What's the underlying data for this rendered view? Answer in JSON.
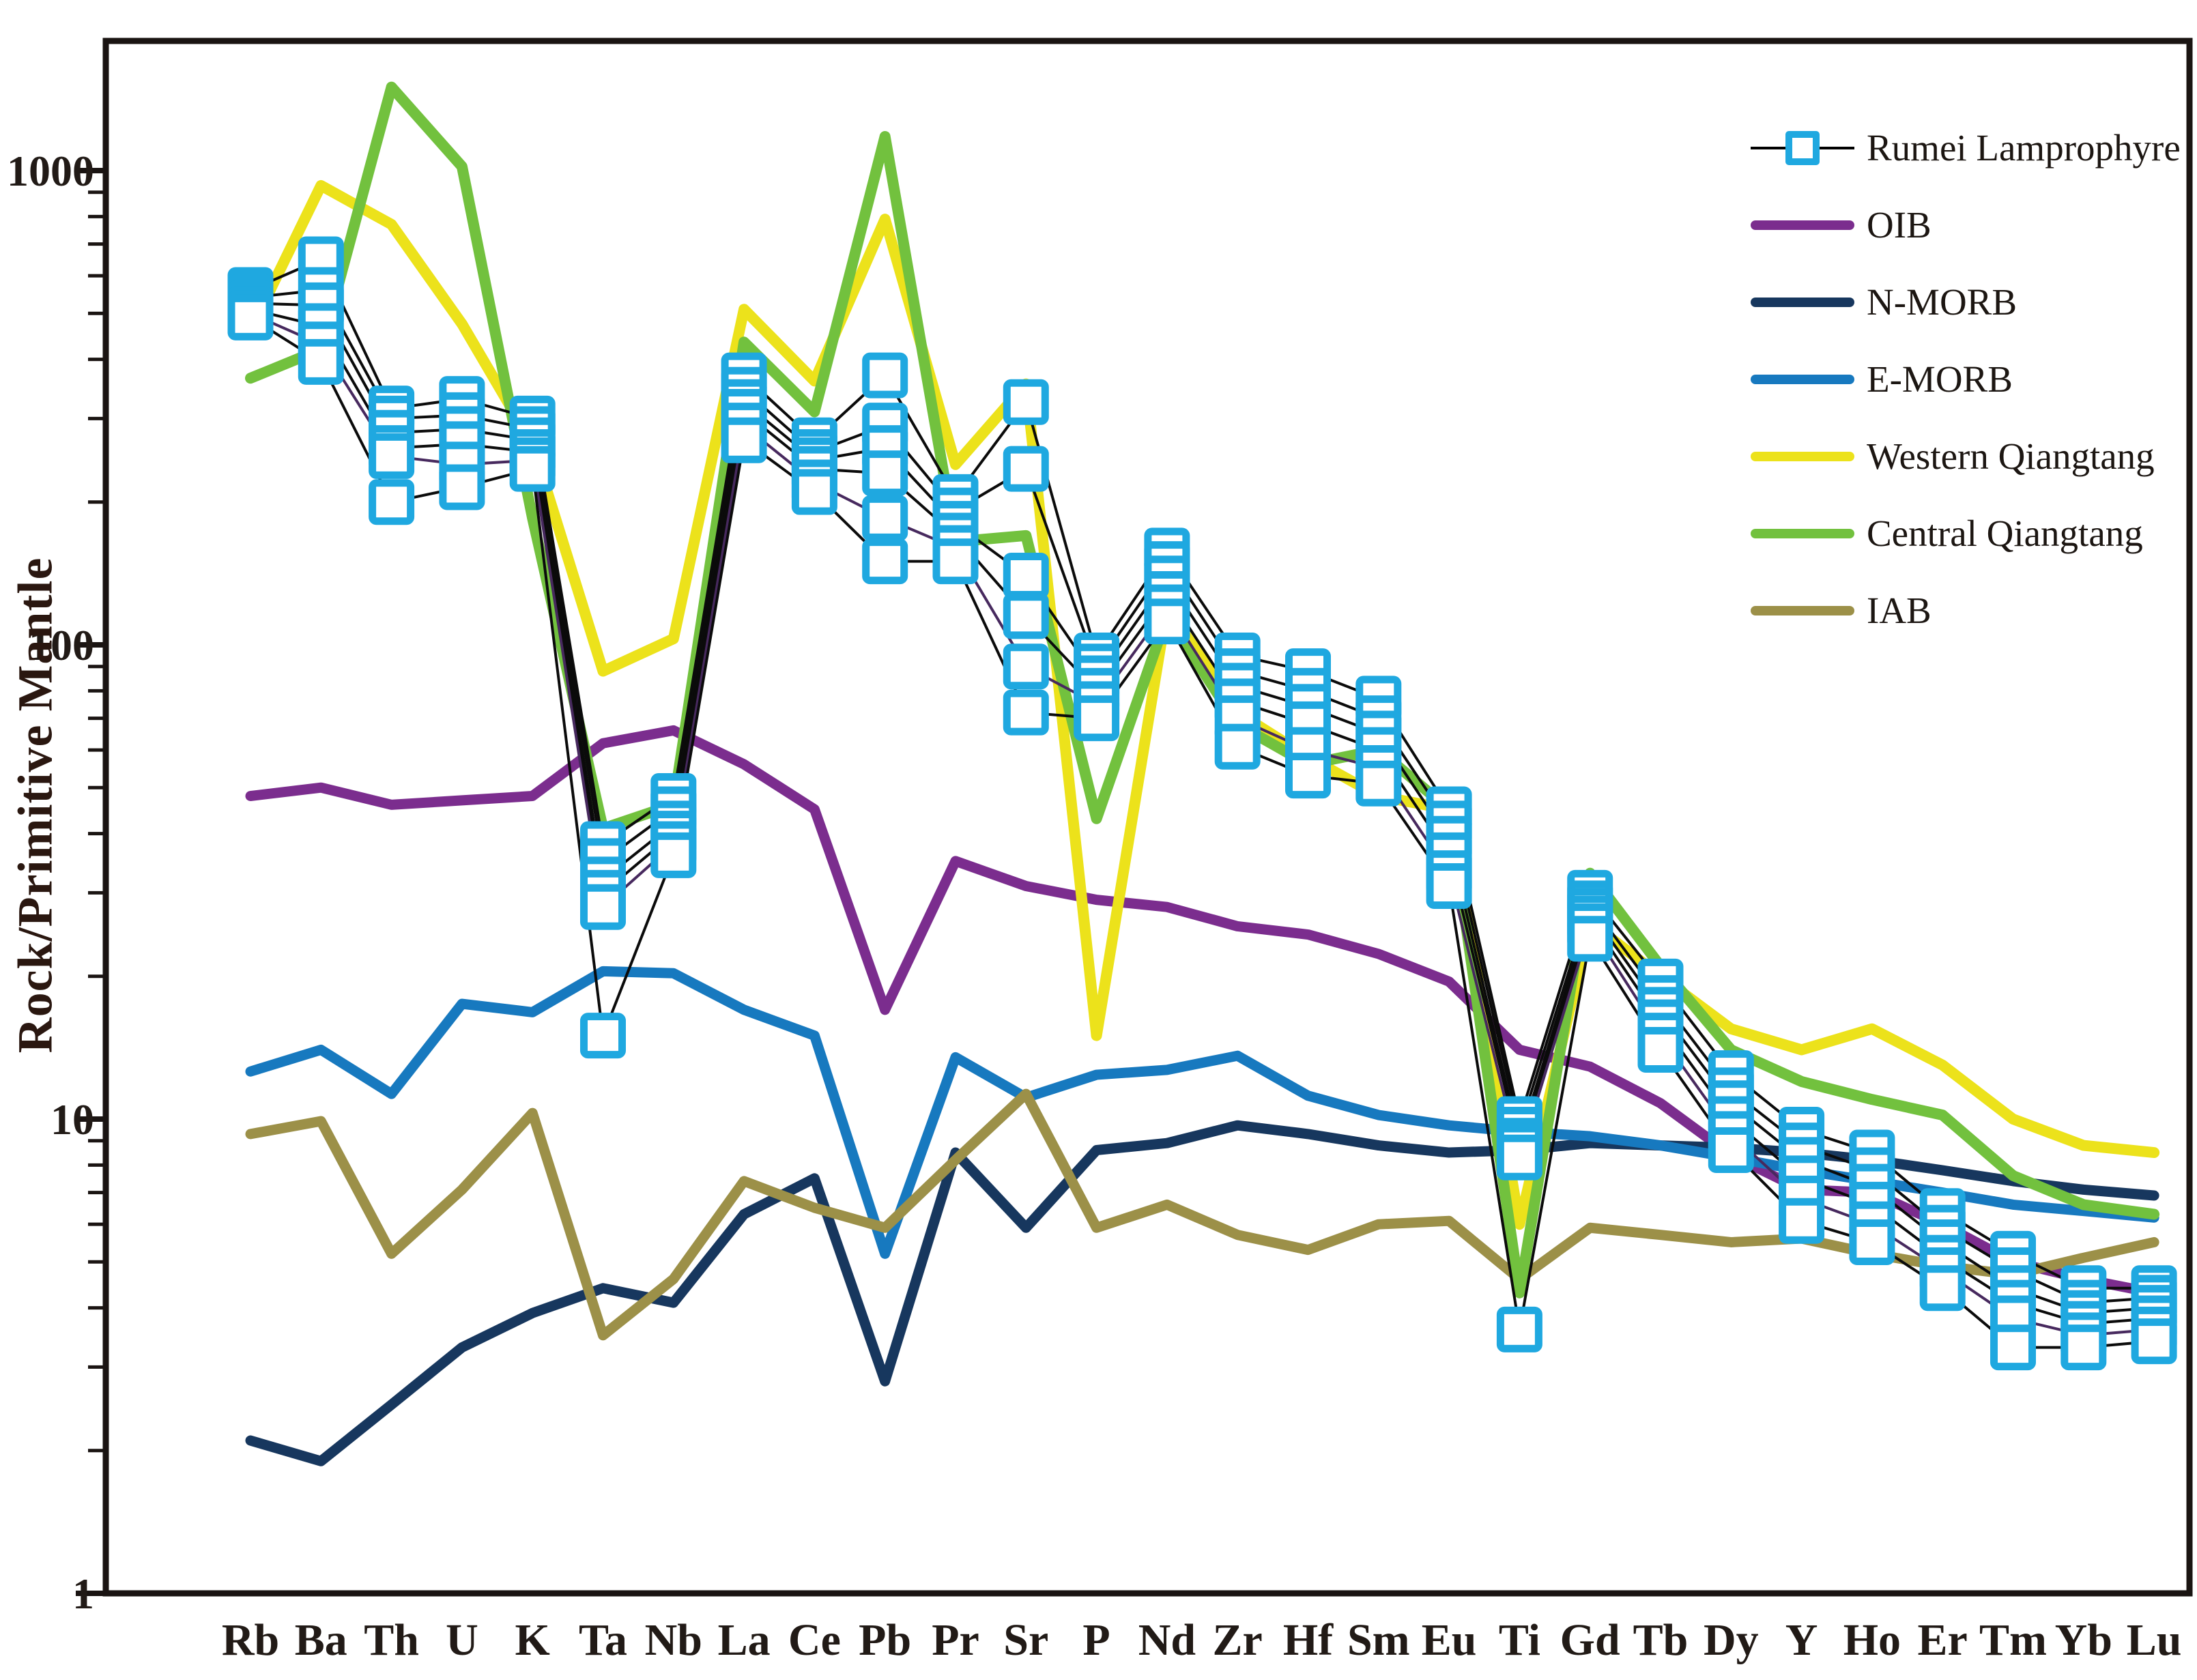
{
  "figure": {
    "ylabel": "Rock/Primitive Mantle"
  },
  "legend": {
    "position": "top-right",
    "items": [
      {
        "label": "Rumei Lamprophyre",
        "type": "sample-marker",
        "color": "#1fa8e0",
        "line_color": "#000000"
      },
      {
        "label": "OIB",
        "type": "line",
        "color": "#7b2d8e"
      },
      {
        "label": "N-MORB",
        "type": "line",
        "color": "#17375e"
      },
      {
        "label": "E-MORB",
        "type": "line",
        "color": "#1779bf"
      },
      {
        "label": "Western Qiangtang",
        "type": "line",
        "color": "#ece21b"
      },
      {
        "label": "Central Qiangtang",
        "type": "line",
        "color": "#72c13e"
      },
      {
        "label": "IAB",
        "type": "line",
        "color": "#9c9048"
      }
    ]
  },
  "chart_data": {
    "type": "line",
    "title": "",
    "xlabel": "",
    "ylabel": "Rock/Primitive Mantle",
    "x_categories": [
      "Rb",
      "Ba",
      "Th",
      "U",
      "K",
      "Ta",
      "Nb",
      "La",
      "Ce",
      "Pb",
      "Pr",
      "Sr",
      "P",
      "Nd",
      "Zr",
      "Hf",
      "Sm",
      "Eu",
      "Ti",
      "Gd",
      "Tb",
      "Dy",
      "Y",
      "Ho",
      "Er",
      "Tm",
      "Yb",
      "Lu"
    ],
    "yaxis": {
      "scale": "log",
      "ylim": [
        1,
        1875
      ],
      "ticks": [
        1,
        10,
        100,
        1000
      ],
      "tick_labels": [
        "1",
        "10",
        "100",
        "1000"
      ],
      "minor_ticks": "2-9 each decade",
      "grid": false
    },
    "samples": {
      "name": "Rumei Lamprophyre",
      "marker": "open-square",
      "marker_color": "#1fa8e0",
      "line_colors": [
        "#0b0b0b",
        "#0b0b0b",
        "#0b0b0b",
        "#0b0b0b",
        "#47295e",
        "#0b0b0b"
      ],
      "values_list": [
        [
          560,
          650,
          315,
          330,
          300,
          38,
          48,
          370,
          270,
          370,
          205,
          325,
          95,
          158,
          95,
          88,
          77,
          45,
          10,
          30,
          19.5,
          12.5,
          9.5,
          8.5,
          6.4,
          5.2,
          4.4,
          4.4
        ],
        [
          540,
          560,
          300,
          305,
          285,
          35,
          45,
          345,
          255,
          290,
          192,
          235,
          90,
          148,
          88,
          80,
          70,
          42,
          9.5,
          28.5,
          18,
          11.5,
          8.8,
          7.8,
          5.9,
          4.8,
          4.1,
          4.2
        ],
        [
          525,
          520,
          280,
          285,
          270,
          32,
          42,
          325,
          245,
          260,
          180,
          140,
          85,
          138,
          82,
          74,
          65,
          39,
          9,
          27.5,
          17,
          10.8,
          8.2,
          7.2,
          5.5,
          4.4,
          3.9,
          4.0
        ],
        [
          510,
          470,
          260,
          265,
          255,
          30,
          40,
          310,
          235,
          230,
          170,
          115,
          80,
          128,
          76,
          68,
          60,
          36,
          8.7,
          26.5,
          16,
          10,
          7.5,
          6.6,
          5.1,
          4.1,
          3.7,
          3.8
        ],
        [
          500,
          430,
          250,
          240,
          245,
          28,
          38,
          290,
          220,
          185,
          160,
          90,
          75,
          120,
          70,
          60,
          55,
          33,
          8.3,
          25.5,
          15,
          9.3,
          6.8,
          6.0,
          4.8,
          3.8,
          3.5,
          3.6
        ],
        [
          490,
          395,
          200,
          215,
          235,
          15,
          36,
          270,
          210,
          150,
          150,
          72,
          70,
          112,
          61,
          53,
          51,
          31,
          3.6,
          24,
          14,
          8.6,
          6.1,
          5.5,
          4.4,
          3.3,
          3.3,
          3.4
        ]
      ]
    },
    "series": [
      {
        "name": "OIB",
        "color": "#7b2d8e",
        "width": 15,
        "values": [
          48,
          50,
          46,
          47,
          48,
          62,
          66,
          56,
          45,
          17,
          35,
          31,
          29,
          28,
          25.5,
          24.5,
          22.3,
          19.5,
          14,
          12.9,
          10.8,
          8.4,
          7.1,
          7.0,
          6.0,
          5.0,
          4.6,
          4.3
        ]
      },
      {
        "name": "N-MORB",
        "color": "#17375e",
        "width": 15,
        "values": [
          2.1,
          1.9,
          2.5,
          3.3,
          3.9,
          4.4,
          4.1,
          6.3,
          7.5,
          2.8,
          8.5,
          5.9,
          8.6,
          8.9,
          9.7,
          9.3,
          8.8,
          8.5,
          8.6,
          8.9,
          8.8,
          8.7,
          8.5,
          8.2,
          7.8,
          7.4,
          7.1,
          6.9
        ]
      },
      {
        "name": "E-MORB",
        "color": "#1779bf",
        "width": 15,
        "values": [
          12.6,
          14,
          11.3,
          17.5,
          16.8,
          20.5,
          20.3,
          17,
          15,
          5.2,
          13.5,
          11.1,
          12.4,
          12.7,
          13.6,
          11.2,
          10.2,
          9.7,
          9.4,
          9.2,
          8.8,
          8.3,
          7.8,
          7.4,
          7.0,
          6.6,
          6.4,
          6.2
        ]
      },
      {
        "name": "IAB",
        "color": "#9c9048",
        "width": 15,
        "values": [
          9.3,
          9.9,
          5.2,
          7.1,
          10.3,
          3.5,
          4.6,
          7.4,
          6.5,
          5.9,
          8.2,
          11.3,
          5.9,
          6.6,
          5.7,
          5.3,
          6.0,
          6.1,
          4.6,
          5.9,
          5.7,
          5.5,
          5.6,
          5.2,
          4.9,
          4.7,
          5.1,
          5.5
        ]
      },
      {
        "name": "Western Qiangtang",
        "color": "#ece21b",
        "width": 16,
        "values": [
          460,
          930,
          770,
          475,
          265,
          88,
          103,
          510,
          360,
          790,
          240,
          355,
          15,
          120,
          72,
          58,
          48,
          45,
          6.0,
          26,
          20,
          15.5,
          14,
          15.5,
          13,
          10,
          8.8,
          8.5
        ]
      },
      {
        "name": "Central Qiangtang",
        "color": "#72c13e",
        "width": 16,
        "values": [
          365,
          420,
          1500,
          1020,
          185,
          41,
          46,
          435,
          310,
          1180,
          165,
          170,
          43,
          115,
          68,
          56,
          60,
          45,
          4.3,
          33,
          21,
          14,
          12,
          11,
          10.2,
          7.6,
          6.6,
          6.3
        ]
      }
    ],
    "legend_position": "top-right"
  }
}
